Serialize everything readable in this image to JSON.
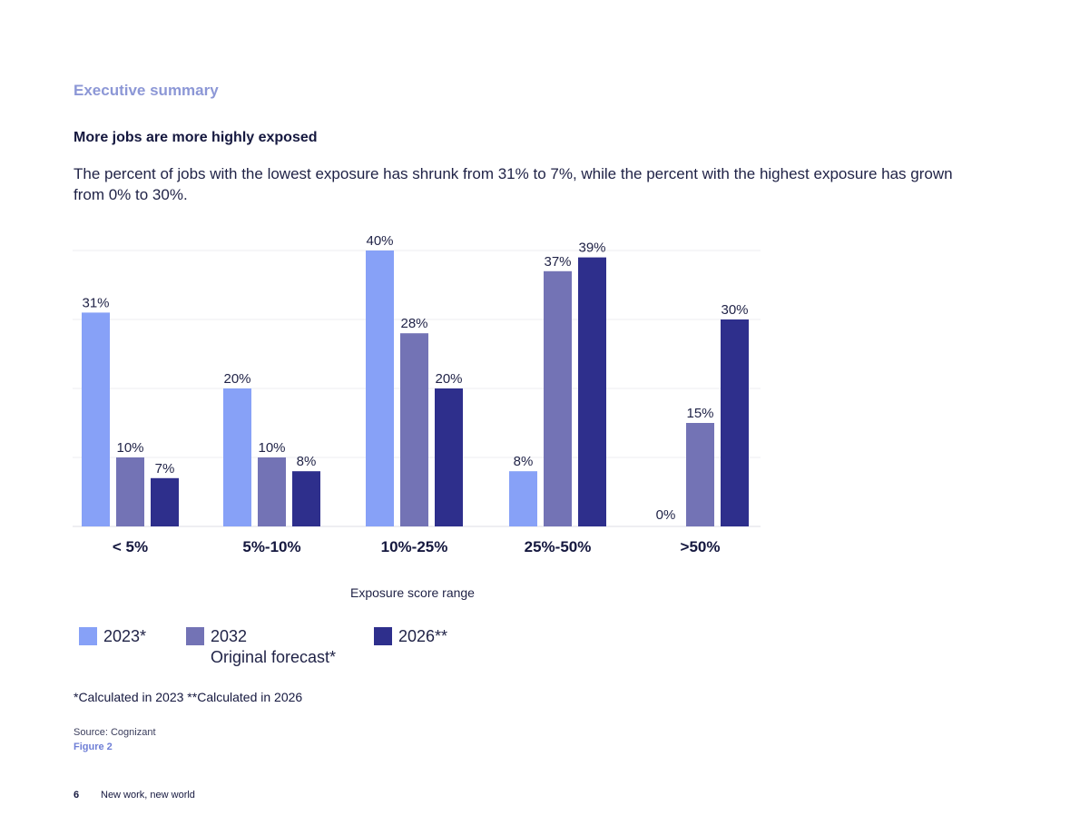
{
  "header": {
    "section": "Executive summary",
    "heading": "More jobs are more highly exposed",
    "subtitle": "The percent of jobs with the lowest exposure has shrunk from 31% to 7%, while the percent with the highest exposure has grown from 0% to 30%."
  },
  "chart_data": {
    "type": "bar",
    "categories": [
      "< 5%",
      "5%-10%",
      "10%-25%",
      "25%-50%",
      ">50%"
    ],
    "series": [
      {
        "name": "2023*",
        "color": "#87a1f7",
        "values": [
          31,
          20,
          40,
          8,
          0
        ]
      },
      {
        "name": "2032 Original forecast*",
        "color": "#7373b5",
        "values": [
          10,
          10,
          28,
          37,
          15
        ]
      },
      {
        "name": "2026**",
        "color": "#2e2f8c",
        "values": [
          7,
          8,
          20,
          39,
          30
        ]
      }
    ],
    "value_labels": [
      [
        "31%",
        "20%",
        "40%",
        "8%",
        "0%"
      ],
      [
        "10%",
        "10%",
        "28%",
        "37%",
        "15%"
      ],
      [
        "7%",
        "8%",
        "20%",
        "39%",
        "30%"
      ]
    ],
    "xlabel": "Exposure score range",
    "ylabel": "",
    "ylim": [
      0,
      40
    ],
    "grid": true,
    "legend_position": "bottom-left"
  },
  "legend": [
    {
      "label": "2023*",
      "sublabel": "",
      "color": "#87a1f7"
    },
    {
      "label": "2032",
      "sublabel": "Original forecast*",
      "color": "#7373b5"
    },
    {
      "label": "2026**",
      "sublabel": "",
      "color": "#2e2f8c"
    }
  ],
  "footnote": "*Calculated in 2023  **Calculated in 2026",
  "source": "Source: Cognizant",
  "figure_label": "Figure 2",
  "footer": {
    "page_number": "6",
    "document_title": "New work, new world"
  }
}
